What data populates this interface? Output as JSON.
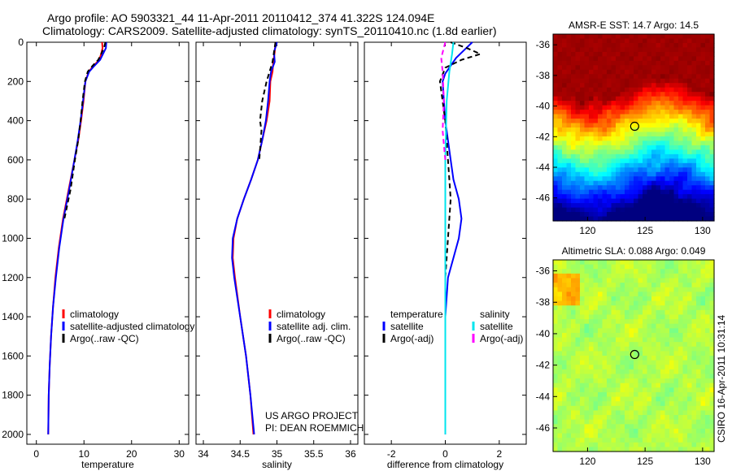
{
  "header": {
    "line1": "Argo profile: AO 5903321_44 11-Apr-2011 20110412_374 41.322S 124.094E",
    "line2": "Climatology: CARS2009. Satellite-adjusted climatology: synTS_20110410.nc (1.8d earlier)"
  },
  "credits": {
    "project": "US ARGO PROJECT",
    "pi": "PI: DEAN ROEMMICH",
    "csiro": "CSIRO 16-Apr-2011 10:31:14"
  },
  "colors": {
    "red": "#ff0000",
    "blue": "#0000ff",
    "black": "#000000",
    "cyan": "#00e5ee",
    "magenta": "#ff00ff",
    "marker": "#000000"
  },
  "chart_data": [
    {
      "type": "line",
      "xlabel": "temperature",
      "xlim": [
        -2,
        32
      ],
      "ylim": [
        0,
        2050
      ],
      "yreverse": true,
      "xticks": [
        0,
        10,
        20,
        30
      ],
      "yticks": [
        0,
        200,
        400,
        600,
        800,
        1000,
        1200,
        1400,
        1600,
        1800,
        2000
      ],
      "legend": [
        "climatology",
        "satellite-adjusted climatology",
        "Argo(..raw -QC)"
      ],
      "series": [
        {
          "name": "climatology",
          "color": "#ff0000",
          "dash": false,
          "x": [
            13.8,
            13.9,
            13.6,
            13.2,
            12.0,
            11.0,
            10.3,
            9.9,
            9.4,
            8.8,
            8.0,
            6.8,
            5.6,
            4.7,
            4.0,
            3.5,
            3.1,
            2.8,
            2.6,
            2.5
          ],
          "y": [
            0,
            30,
            60,
            90,
            120,
            150,
            200,
            300,
            400,
            500,
            600,
            750,
            900,
            1050,
            1200,
            1350,
            1500,
            1650,
            1800,
            2000
          ]
        },
        {
          "name": "satellite-adjusted climatology",
          "color": "#0000ff",
          "dash": false,
          "x": [
            14.7,
            14.6,
            14.0,
            13.4,
            12.2,
            11.1,
            10.3,
            9.8,
            9.3,
            8.7,
            8.0,
            6.9,
            5.7,
            4.8,
            4.1,
            3.5,
            3.1,
            2.8,
            2.6,
            2.5
          ],
          "y": [
            0,
            30,
            60,
            90,
            120,
            150,
            200,
            300,
            400,
            500,
            600,
            750,
            900,
            1050,
            1200,
            1350,
            1500,
            1650,
            1800,
            2000
          ]
        },
        {
          "name": "Argo(..raw -QC)",
          "color": "#000000",
          "dash": true,
          "x": [
            14.5,
            14.2,
            13.6,
            13.0,
            11.8,
            10.8,
            10.2,
            9.7,
            9.3,
            8.8,
            8.1,
            7.2,
            5.9
          ],
          "y": [
            0,
            30,
            60,
            90,
            120,
            150,
            200,
            300,
            400,
            500,
            600,
            750,
            900
          ]
        }
      ]
    },
    {
      "type": "line",
      "xlabel": "salinity",
      "xlim": [
        33.9,
        36.1
      ],
      "ylim": [
        0,
        2050
      ],
      "yreverse": true,
      "xticks": [
        34,
        34.5,
        35,
        35.5,
        36
      ],
      "legend": [
        "climatology",
        "satellite adj. clim.",
        "Argo(..raw -QC)"
      ],
      "series": [
        {
          "name": "climatology",
          "color": "#ff0000",
          "dash": false,
          "x": [
            34.98,
            34.97,
            34.95,
            34.94,
            34.91,
            34.9,
            34.86,
            34.8,
            34.74,
            34.65,
            34.55,
            34.46,
            34.41,
            34.4,
            34.43,
            34.5,
            34.58,
            34.64,
            34.68
          ],
          "y": [
            0,
            50,
            100,
            150,
            200,
            300,
            400,
            500,
            600,
            700,
            800,
            900,
            1000,
            1100,
            1200,
            1400,
            1600,
            1800,
            2000
          ]
        },
        {
          "name": "satellite adj. clim.",
          "color": "#0000ff",
          "dash": false,
          "x": [
            35.0,
            34.96,
            34.97,
            34.92,
            34.9,
            34.88,
            34.85,
            34.8,
            34.74,
            34.65,
            34.55,
            34.46,
            34.4,
            34.39,
            34.42,
            34.5,
            34.58,
            34.64,
            34.69
          ],
          "y": [
            0,
            50,
            100,
            150,
            200,
            300,
            400,
            500,
            600,
            700,
            800,
            900,
            1000,
            1100,
            1200,
            1400,
            1600,
            1800,
            2000
          ]
        },
        {
          "name": "Argo(..raw -QC)",
          "color": "#000000",
          "dash": true,
          "x": [
            34.98,
            34.96,
            34.94,
            34.9,
            34.86,
            34.8,
            34.77,
            34.79,
            34.76
          ],
          "y": [
            0,
            50,
            100,
            150,
            200,
            300,
            400,
            450,
            600
          ]
        }
      ]
    },
    {
      "type": "line",
      "xlabel": "difference from climatology",
      "xlim": [
        -3,
        3
      ],
      "ylim": [
        0,
        2050
      ],
      "yreverse": true,
      "xticks": [
        -2,
        0,
        2
      ],
      "legend": [
        "temperature",
        "satellite",
        "Argo(-adj)",
        "salinity",
        "satellite",
        "Argo(-adj)"
      ],
      "series": [
        {
          "name": "satellite",
          "color": "#0000ff",
          "dash": false,
          "x": [
            1.0,
            0.7,
            0.4,
            0.2,
            0.0,
            -0.1,
            -0.05,
            0.0,
            0.1,
            0.2,
            0.3,
            0.5,
            0.6,
            0.5,
            0.3,
            0.1,
            0.0,
            0.0
          ],
          "y": [
            0,
            40,
            80,
            120,
            160,
            200,
            300,
            400,
            500,
            600,
            700,
            800,
            900,
            1000,
            1100,
            1200,
            1400,
            2000
          ]
        },
        {
          "name": "Argo(-adj)",
          "color": "#000000",
          "dash": true,
          "x": [
            0.2,
            0.8,
            1.3,
            0.6,
            0.0,
            -0.2,
            -0.1,
            0.0,
            0.1,
            0.2,
            0.1,
            0.0
          ],
          "y": [
            0,
            30,
            60,
            90,
            130,
            200,
            300,
            400,
            600,
            800,
            1000,
            1200
          ]
        },
        {
          "name": "satellite",
          "color": "#00e5ee",
          "dash": false,
          "x": [
            0.3,
            0.25,
            0.15,
            0.05,
            0.0,
            0.0,
            0.0,
            0.0
          ],
          "y": [
            0,
            60,
            150,
            300,
            600,
            1000,
            1400,
            2000
          ]
        },
        {
          "name": "Argo(-adj)",
          "color": "#ff00ff",
          "dash": true,
          "x": [
            0.0,
            -0.15,
            -0.1,
            -0.05,
            -0.1,
            0.0
          ],
          "y": [
            0,
            80,
            150,
            300,
            450,
            600
          ]
        }
      ]
    },
    {
      "type": "heatmap",
      "title": "AMSR-E SST: 14.7 Argo: 14.5",
      "xlim": [
        117,
        131
      ],
      "ylim": [
        -47.5,
        -35.3
      ],
      "xticks": [
        120,
        125,
        130
      ],
      "yticks": [
        -36,
        -38,
        -40,
        -42,
        -44,
        -46
      ],
      "colormap": "jet",
      "marker": {
        "lon": 124.094,
        "lat": -41.322
      }
    },
    {
      "type": "heatmap",
      "title": "Altimetric SLA: 0.088 Argo: 0.049",
      "xlim": [
        117,
        131
      ],
      "ylim": [
        -47.5,
        -35.3
      ],
      "xticks": [
        120,
        125,
        130
      ],
      "yticks": [
        -36,
        -38,
        -40,
        -42,
        -44,
        -46
      ],
      "colormap": "jet",
      "marker": {
        "lon": 124.094,
        "lat": -41.322
      }
    }
  ]
}
